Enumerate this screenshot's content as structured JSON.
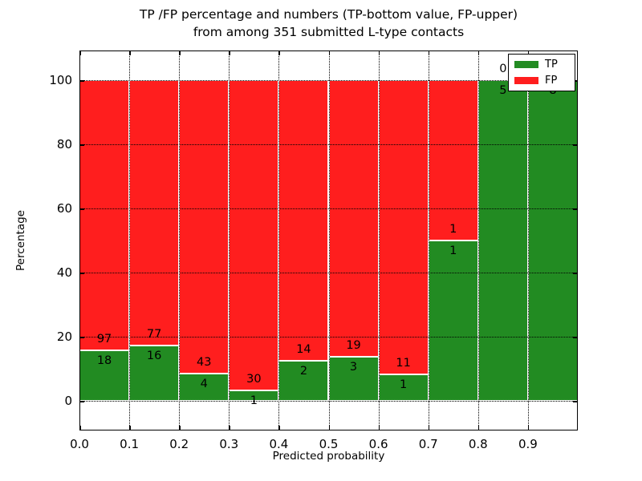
{
  "figure": {
    "title_line1": "TP /FP percentage and numbers (TP-bottom value, FP-upper)",
    "title_line2": "from among 351 submitted L-type contacts",
    "xlabel": "Predicted probability",
    "ylabel": "Percentage"
  },
  "legend": {
    "position": "upper right",
    "entries": [
      {
        "label": "TP",
        "color": "#228b22"
      },
      {
        "label": "FP",
        "color": "#ff1e1e"
      }
    ]
  },
  "chart_data": {
    "type": "bar",
    "stacked": true,
    "normalized": "each bin scaled to 100%",
    "title": "TP /FP percentage and numbers (TP-bottom value, FP-upper) from among 351 submitted L-type contacts",
    "xlabel": "Predicted probability",
    "ylabel": "Percentage",
    "total_contacts": 351,
    "xlim": [
      0.0,
      1.0
    ],
    "ylim": [
      0,
      100
    ],
    "bin_width": 0.1,
    "x_tick_labels": [
      "0.0",
      "0.1",
      "0.2",
      "0.3",
      "0.4",
      "0.5",
      "0.6",
      "0.7",
      "0.8",
      "0.9"
    ],
    "y_ticks": [
      0,
      20,
      40,
      60,
      80,
      100
    ],
    "y_tick_labels": [
      "0",
      "20",
      "40",
      "60",
      "80",
      "100"
    ],
    "grid": "dotted",
    "legend_position": "upper right",
    "series": [
      {
        "name": "TP",
        "color": "#228b22",
        "counts": [
          18,
          16,
          4,
          1,
          2,
          3,
          1,
          1,
          5,
          8
        ]
      },
      {
        "name": "FP",
        "color": "#ff1e1e",
        "counts": [
          97,
          77,
          43,
          30,
          14,
          19,
          11,
          1,
          0,
          0
        ]
      }
    ],
    "tp_percent_per_bin": [
      15.65,
      17.2,
      8.51,
      3.23,
      12.5,
      13.64,
      8.33,
      50.0,
      100.0,
      100.0
    ]
  }
}
